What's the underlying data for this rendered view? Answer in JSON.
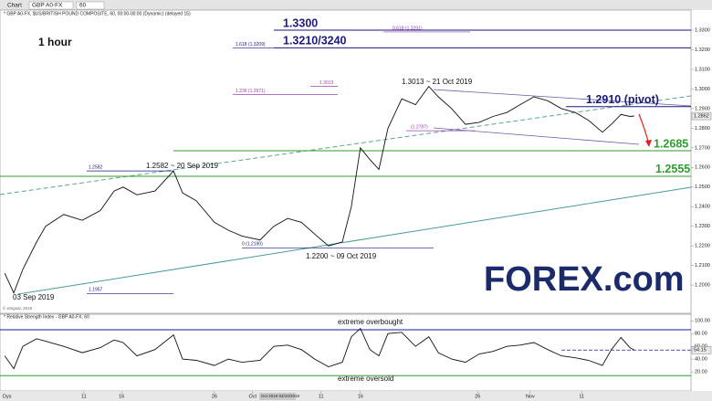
{
  "toolbar": {
    "title": "Chart",
    "symbol": "GBP A0-FX",
    "interval": "60"
  },
  "logo": "FOREX.com",
  "copyright": "© eSignal, 2019",
  "chart_data": [
    {
      "type": "line",
      "title": "* GBP A0-FX, $US/BRITISH POUND COMPOSITE, 60, 00:00-00:00 (Dynamic) (delayed 15)",
      "subtitle": "1 hour",
      "x_label": "Dys",
      "cursor_label": "Oct 2019 02/10/2019",
      "color": "#111111",
      "x": [
        9,
        26,
        43,
        69,
        86,
        120,
        155,
        189,
        215,
        232,
        258,
        292,
        327,
        344,
        370,
        404,
        430,
        456,
        490,
        516,
        542,
        568,
        593,
        619,
        645,
        662,
        679,
        697,
        714,
        731,
        757,
        783,
        808,
        826,
        851,
        877,
        903,
        929,
        955,
        980,
        1006,
        1032,
        1058,
        1084,
        1109,
        1135,
        1152,
        1170,
        1187,
        1195
      ],
      "values": [
        1.206,
        1.196,
        1.208,
        1.222,
        1.23,
        1.236,
        1.233,
        1.238,
        1.248,
        1.25,
        1.246,
        1.248,
        1.2582,
        1.247,
        1.243,
        1.232,
        1.228,
        1.225,
        1.223,
        1.23,
        1.234,
        1.232,
        1.226,
        1.22,
        1.222,
        1.24,
        1.27,
        1.264,
        1.259,
        1.28,
        1.295,
        1.292,
        1.3013,
        1.296,
        1.29,
        1.282,
        1.283,
        1.286,
        1.288,
        1.292,
        1.296,
        1.294,
        1.29,
        1.288,
        1.284,
        1.278,
        1.282,
        1.287,
        1.286,
        1.2862
      ],
      "xlim": [
        0,
        1302
      ],
      "xticks": [
        {
          "value": 158,
          "label": "11"
        },
        {
          "value": 229,
          "label": "16"
        },
        {
          "value": 404,
          "label": "26"
        },
        {
          "value": 476,
          "label": "Oct"
        },
        {
          "value": 605,
          "label": "11"
        },
        {
          "value": 679,
          "label": "16"
        },
        {
          "value": 900,
          "label": "26"
        },
        {
          "value": 999,
          "label": "Nov"
        },
        {
          "value": 1096,
          "label": "11"
        }
      ],
      "ylim": [
        1.1856,
        1.337
      ],
      "yticks": [
        {
          "value": 1.2,
          "label": "1.2000"
        },
        {
          "value": 1.21,
          "label": "1.2100"
        },
        {
          "value": 1.22,
          "label": "1.2200"
        },
        {
          "value": 1.23,
          "label": "1.2300"
        },
        {
          "value": 1.24,
          "label": "1.2400"
        },
        {
          "value": 1.25,
          "label": "1.2500"
        },
        {
          "value": 1.26,
          "label": "1.2600"
        },
        {
          "value": 1.27,
          "label": "1.2700"
        },
        {
          "value": 1.28,
          "label": "1.2800"
        },
        {
          "value": 1.29,
          "label": "1.2900"
        },
        {
          "value": 1.3,
          "label": "1.3000"
        },
        {
          "value": 1.31,
          "label": "1.3100"
        },
        {
          "value": 1.32,
          "label": "1.3200"
        },
        {
          "value": 1.33,
          "label": "1.3300"
        }
      ],
      "last_value": {
        "value": 1.2862,
        "label": "1.2862"
      },
      "levels": [
        {
          "value": 1.33,
          "label": "1.3300",
          "color": "#1a1a80"
        },
        {
          "value": 1.321,
          "label": "1.3210/3240",
          "color": "#1a1a80"
        },
        {
          "value": 1.291,
          "label": "1.2910 (pivot)",
          "color": "#1a1a80"
        },
        {
          "value": 1.2685,
          "label": "1.2685",
          "color": "#2e9e2e"
        },
        {
          "value": 1.2555,
          "label": "1.2555",
          "color": "#2e9e2e"
        }
      ],
      "fib_levels": [
        {
          "value": 1.3291,
          "label": "0.618 (1.3291)"
        },
        {
          "value": 1.3209,
          "label": "1.618 (1.3209)"
        },
        {
          "value": 1.2971,
          "label": "1.236 (1.2971)"
        },
        {
          "value": 1.3013,
          "label": "1.3013"
        },
        {
          "value": 1.2787,
          "label": "(1.2787)"
        },
        {
          "value": 1.2582,
          "label": "1.2582"
        },
        {
          "value": 1.219,
          "label": "0 (1.2190)"
        },
        {
          "value": 1.1957,
          "label": "1.1957"
        }
      ],
      "annotations": [
        "1.3013 ~ 21 Oct 2019",
        "1.2582 ~ 20 Sep 2019",
        "1.2200 ~ 09 Oct 2019",
        "03 Sep 2019"
      ]
    },
    {
      "type": "line",
      "title": "* Relative Strength Index - GBP A0-FX, 60",
      "color": "#111111",
      "x": [
        9,
        26,
        43,
        69,
        86,
        120,
        155,
        189,
        215,
        232,
        258,
        292,
        327,
        344,
        370,
        404,
        430,
        456,
        490,
        516,
        542,
        568,
        593,
        619,
        645,
        662,
        679,
        697,
        714,
        731,
        757,
        783,
        808,
        826,
        851,
        877,
        903,
        929,
        955,
        980,
        1006,
        1032,
        1058,
        1084,
        1109,
        1135,
        1152,
        1170,
        1187,
        1195
      ],
      "values": [
        45,
        25,
        60,
        72,
        68,
        60,
        50,
        58,
        70,
        66,
        45,
        55,
        78,
        40,
        38,
        30,
        40,
        35,
        38,
        60,
        62,
        55,
        40,
        28,
        35,
        75,
        88,
        55,
        45,
        80,
        82,
        60,
        75,
        50,
        40,
        35,
        48,
        52,
        60,
        62,
        66,
        55,
        45,
        42,
        38,
        30,
        55,
        74,
        58,
        54.15
      ],
      "xlim": [
        0,
        1302
      ],
      "ylim": [
        0,
        109
      ],
      "yticks": [
        {
          "value": 20,
          "label": "20.00"
        },
        {
          "value": 40,
          "label": "40.00"
        },
        {
          "value": 60,
          "label": "60.00"
        },
        {
          "value": 80,
          "label": "80.00"
        },
        {
          "value": 100,
          "label": "100.00"
        }
      ],
      "last_value": {
        "value": 54.15,
        "label": "54.15"
      },
      "levels": [
        {
          "value": 86,
          "label": "extreme overbought",
          "color": "#1a1aa0"
        },
        {
          "value": 14,
          "label": "extreme oversold",
          "color": "#2e9e2e"
        }
      ]
    }
  ]
}
